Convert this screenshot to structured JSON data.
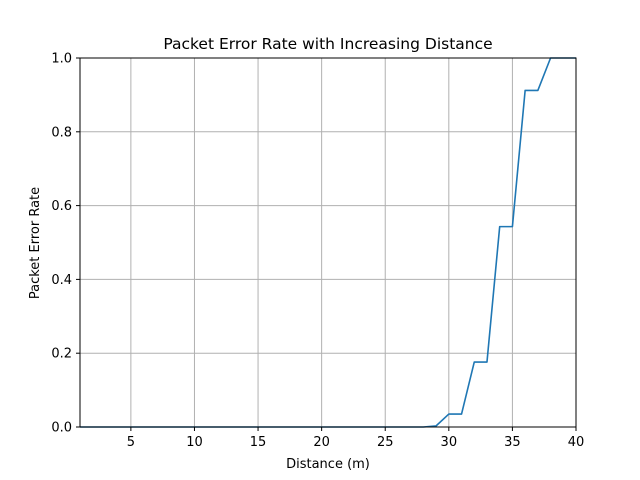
{
  "chart_data": {
    "type": "line",
    "title": "Packet Error Rate with Increasing Distance",
    "xlabel": "Distance (m)",
    "ylabel": "Packet Error Rate",
    "xlim": [
      1,
      40
    ],
    "ylim": [
      0,
      1.0
    ],
    "xticks": [
      5,
      10,
      15,
      20,
      25,
      30,
      35,
      40
    ],
    "xtick_labels": [
      "5",
      "10",
      "15",
      "20",
      "25",
      "30",
      "35",
      "40"
    ],
    "yticks": [
      0,
      0.2,
      0.4,
      0.6,
      0.8,
      1.0
    ],
    "ytick_labels": [
      "0.0",
      "0.2",
      "0.4",
      "0.6",
      "0.8",
      "1.0"
    ],
    "grid": true,
    "series": [
      {
        "color": "#1f77b4",
        "x": [
          1,
          2,
          3,
          4,
          5,
          6,
          7,
          8,
          9,
          10,
          11,
          12,
          13,
          14,
          15,
          16,
          17,
          18,
          19,
          20,
          21,
          22,
          23,
          24,
          25,
          26,
          27,
          28,
          29,
          30,
          31,
          32,
          33,
          34,
          35,
          36,
          37,
          38,
          39,
          40
        ],
        "y": [
          0,
          0,
          0,
          0,
          0,
          0,
          0,
          0,
          0,
          0,
          0,
          0,
          0,
          0,
          0,
          0,
          0,
          0,
          0,
          0,
          0,
          0,
          0,
          0,
          0,
          0,
          0,
          0,
          0.003,
          0.035,
          0.035,
          0.176,
          0.176,
          0.543,
          0.543,
          0.912,
          0.912,
          1.0,
          1.0,
          1.0
        ]
      }
    ]
  }
}
